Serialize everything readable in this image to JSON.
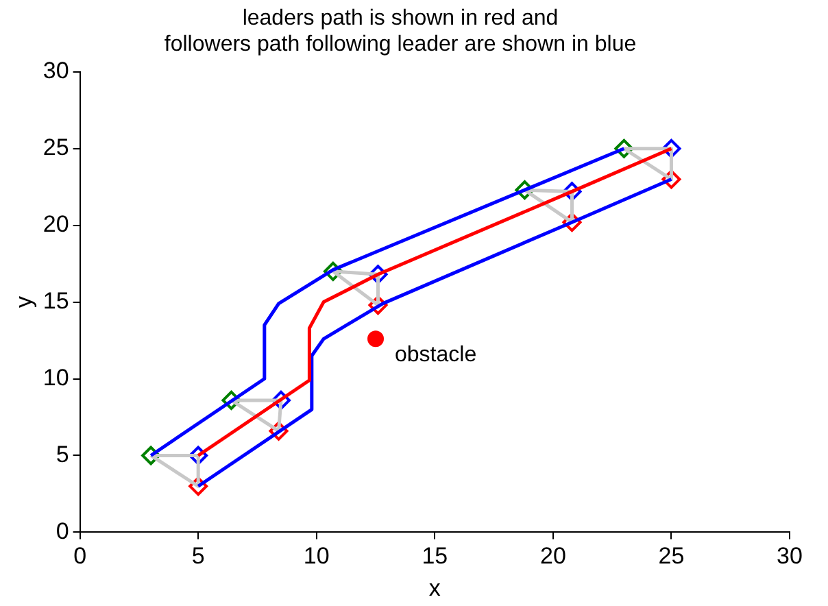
{
  "chart_data": {
    "type": "line",
    "title": "leaders path is shown in red and\nfollowers path following leader are shown in blue",
    "xlabel": "x",
    "ylabel": "y",
    "xlim": [
      0,
      30
    ],
    "ylim": [
      0,
      30
    ],
    "xticks": [
      0,
      5,
      10,
      15,
      20,
      25,
      30
    ],
    "yticks": [
      0,
      5,
      10,
      15,
      20,
      25,
      30
    ],
    "grid": false,
    "legend": false,
    "line_style": "solid",
    "series": [
      {
        "type": "line",
        "color": "#ff0000",
        "marker": "none",
        "x": [
          5,
          9.7,
          9.7,
          10.3,
          12.6,
          20.8,
          25
        ],
        "values": [
          5,
          9.9,
          13.3,
          15,
          16.8,
          22.2,
          25
        ]
      },
      {
        "type": "line",
        "color": "#0000ff",
        "marker": "none",
        "x": [
          3,
          7.8,
          7.8,
          8.4,
          10.7,
          18.8,
          23
        ],
        "values": [
          5,
          10,
          13.5,
          14.9,
          17.1,
          22.3,
          25
        ]
      },
      {
        "type": "line",
        "color": "#0000ff",
        "marker": "none",
        "x": [
          5,
          9.8,
          9.8,
          10.3,
          12.8,
          20.8,
          25
        ],
        "values": [
          3,
          8,
          11.5,
          12.6,
          14.9,
          20.2,
          23
        ]
      },
      {
        "type": "line",
        "color": "#c8c8c8",
        "marker": "none",
        "x": [
          3,
          5,
          5
        ],
        "values": [
          5,
          5,
          3
        ]
      },
      {
        "type": "line",
        "color": "#c8c8c8",
        "marker": "none",
        "x": [
          3,
          5
        ],
        "values": [
          5,
          3
        ]
      },
      {
        "type": "line",
        "color": "#c8c8c8",
        "marker": "none",
        "x": [
          6.4,
          8.5,
          8.4
        ],
        "values": [
          8.6,
          8.6,
          6.6
        ]
      },
      {
        "type": "line",
        "color": "#c8c8c8",
        "marker": "none",
        "x": [
          6.4,
          8.4
        ],
        "values": [
          8.6,
          6.6
        ]
      },
      {
        "type": "line",
        "color": "#c8c8c8",
        "marker": "none",
        "x": [
          10.7,
          12.6,
          12.6
        ],
        "values": [
          17,
          16.8,
          14.8
        ]
      },
      {
        "type": "line",
        "color": "#c8c8c8",
        "marker": "none",
        "x": [
          10.7,
          12.6
        ],
        "values": [
          17,
          14.8
        ]
      },
      {
        "type": "line",
        "color": "#c8c8c8",
        "marker": "none",
        "x": [
          18.8,
          20.8,
          20.8
        ],
        "values": [
          22.3,
          22.2,
          20.2
        ]
      },
      {
        "type": "line",
        "color": "#c8c8c8",
        "marker": "none",
        "x": [
          18.8,
          20.8
        ],
        "values": [
          22.3,
          20.2
        ]
      },
      {
        "type": "line",
        "color": "#c8c8c8",
        "marker": "none",
        "x": [
          23,
          25,
          25
        ],
        "values": [
          25,
          25,
          23
        ]
      },
      {
        "type": "line",
        "color": "#c8c8c8",
        "marker": "none",
        "x": [
          23,
          25
        ],
        "values": [
          25,
          23
        ]
      },
      {
        "type": "scatter",
        "color": "#008000",
        "marker": "diamond",
        "x": [
          3,
          6.4,
          10.7,
          18.8,
          23
        ],
        "values": [
          5,
          8.6,
          17,
          22.3,
          25
        ]
      },
      {
        "type": "scatter",
        "color": "#0000ff",
        "marker": "diamond",
        "x": [
          5,
          8.5,
          12.6,
          20.8,
          25
        ],
        "values": [
          5,
          8.6,
          16.8,
          22.2,
          25
        ]
      },
      {
        "type": "scatter",
        "color": "#ff0000",
        "marker": "diamond",
        "x": [
          5,
          8.4,
          12.6,
          20.8,
          25
        ],
        "values": [
          3,
          6.6,
          14.8,
          20.2,
          23
        ]
      },
      {
        "type": "scatter",
        "color": "#ff0000",
        "marker": "circle",
        "x": [
          12.5
        ],
        "values": [
          12.6
        ]
      }
    ],
    "annotations": [
      {
        "text": "obstacle",
        "x": 12.5,
        "y": 12.6
      }
    ]
  }
}
